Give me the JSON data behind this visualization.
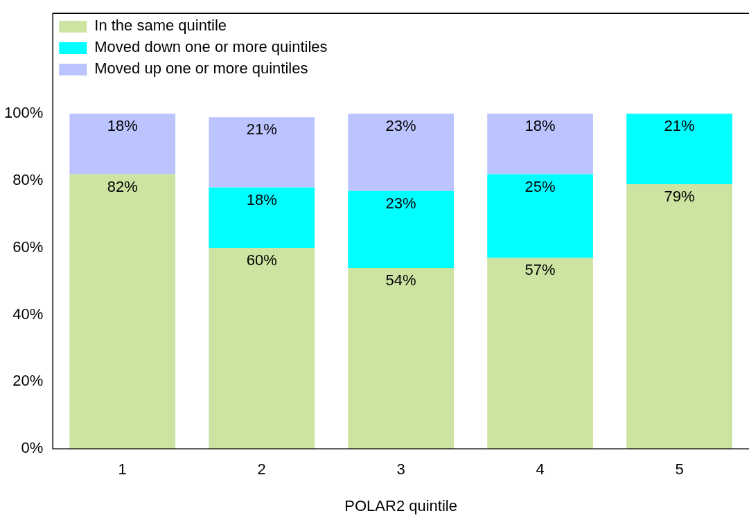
{
  "chart_data": {
    "type": "bar",
    "stacked": true,
    "xlabel": "POLAR2 quintile",
    "categories": [
      "1",
      "2",
      "3",
      "4",
      "5"
    ],
    "series": [
      {
        "name": "In the same quintile",
        "color": "#cce3a1",
        "values": [
          82,
          60,
          54,
          57,
          79
        ],
        "value_labels": [
          "82%",
          "60%",
          "54%",
          "57%",
          "79%"
        ]
      },
      {
        "name": "Moved down one or more quintiles",
        "color": "#00ffff",
        "values": [
          null,
          18,
          23,
          25,
          21
        ],
        "value_labels": [
          null,
          "18%",
          "23%",
          "25%",
          "21%"
        ]
      },
      {
        "name": "Moved up one or more quintiles",
        "color": "#bbc4ff",
        "values": [
          18,
          21,
          23,
          18,
          null
        ],
        "value_labels": [
          "18%",
          "21%",
          "23%",
          "18%",
          null
        ]
      }
    ],
    "ylim": [
      0,
      130
    ],
    "yticks": [
      {
        "value": 0,
        "label": "0%"
      },
      {
        "value": 20,
        "label": "20%"
      },
      {
        "value": 40,
        "label": "40%"
      },
      {
        "value": 60,
        "label": "60%"
      },
      {
        "value": 80,
        "label": "80%"
      },
      {
        "value": 100,
        "label": "100%"
      }
    ],
    "legend": "top left",
    "grid": false
  }
}
